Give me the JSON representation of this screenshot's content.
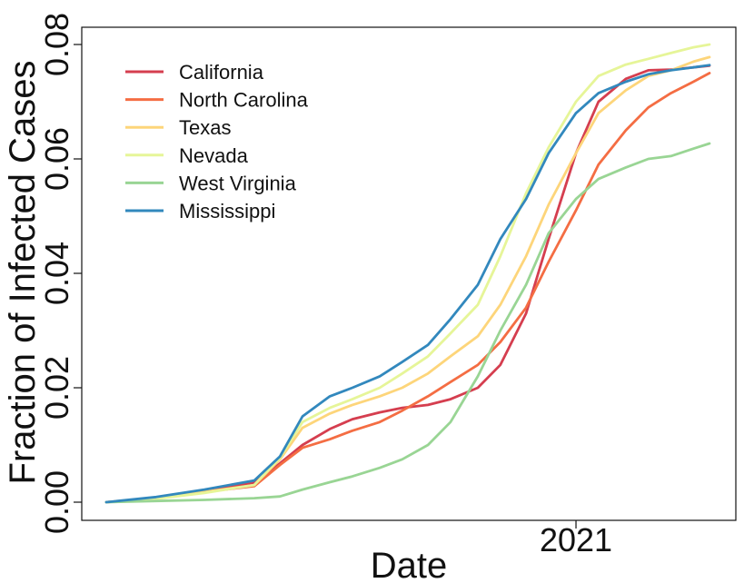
{
  "chart_data": {
    "type": "line",
    "title": "",
    "xlabel": "Date",
    "ylabel": "Fraction of Infected Cases",
    "xlim": [
      "2020-03-01",
      "2021-05-01"
    ],
    "ylim": [
      0,
      0.082
    ],
    "x_ticks": [
      {
        "date": "2021-01-01",
        "label": "2021"
      }
    ],
    "y_ticks": [
      {
        "value": 0.0,
        "label": "0.00"
      },
      {
        "value": 0.02,
        "label": "0.02"
      },
      {
        "value": 0.04,
        "label": "0.04"
      },
      {
        "value": 0.06,
        "label": "0.06"
      },
      {
        "value": 0.08,
        "label": "0.08"
      }
    ],
    "grid": false,
    "legend_position": "top-left",
    "x": [
      "2020-03-15",
      "2020-04-15",
      "2020-05-15",
      "2020-06-15",
      "2020-07-01",
      "2020-07-15",
      "2020-08-01",
      "2020-08-15",
      "2020-09-01",
      "2020-09-15",
      "2020-10-01",
      "2020-10-15",
      "2020-11-01",
      "2020-11-15",
      "2020-12-01",
      "2020-12-15",
      "2021-01-01",
      "2021-01-15",
      "2021-02-01",
      "2021-02-15",
      "2021-03-01",
      "2021-03-15",
      "2021-03-25"
    ],
    "series": [
      {
        "name": "California",
        "color": "#d53e4f",
        "values": [
          0.0,
          0.0007,
          0.002,
          0.0034,
          0.0068,
          0.01,
          0.0128,
          0.0145,
          0.0157,
          0.0165,
          0.017,
          0.018,
          0.02,
          0.024,
          0.033,
          0.046,
          0.061,
          0.07,
          0.074,
          0.0755,
          0.0756,
          0.076,
          0.0763
        ]
      },
      {
        "name": "North Carolina",
        "color": "#f46d43",
        "values": [
          0.0,
          0.0007,
          0.0018,
          0.0028,
          0.0065,
          0.0095,
          0.011,
          0.0125,
          0.014,
          0.016,
          0.0185,
          0.021,
          0.024,
          0.028,
          0.034,
          0.042,
          0.051,
          0.059,
          0.065,
          0.069,
          0.0715,
          0.0735,
          0.075
        ]
      },
      {
        "name": "Texas",
        "color": "#fdd57a",
        "values": [
          0.0,
          0.0007,
          0.0018,
          0.003,
          0.0075,
          0.013,
          0.0155,
          0.017,
          0.0185,
          0.02,
          0.0225,
          0.0255,
          0.029,
          0.0345,
          0.043,
          0.052,
          0.061,
          0.068,
          0.072,
          0.0745,
          0.0755,
          0.077,
          0.0778
        ]
      },
      {
        "name": "Nevada",
        "color": "#e6f598",
        "values": [
          0.0,
          0.0006,
          0.0016,
          0.003,
          0.0078,
          0.014,
          0.0165,
          0.018,
          0.02,
          0.0225,
          0.0255,
          0.0295,
          0.0345,
          0.043,
          0.054,
          0.062,
          0.07,
          0.0745,
          0.0765,
          0.0775,
          0.0785,
          0.0795,
          0.08
        ]
      },
      {
        "name": "West Virginia",
        "color": "#99d594",
        "values": [
          0.0,
          0.0002,
          0.0004,
          0.0007,
          0.001,
          0.0022,
          0.0035,
          0.0045,
          0.006,
          0.0075,
          0.01,
          0.014,
          0.022,
          0.03,
          0.038,
          0.047,
          0.053,
          0.0565,
          0.0585,
          0.06,
          0.0605,
          0.0618,
          0.0627
        ]
      },
      {
        "name": "Mississippi",
        "color": "#3288bd",
        "values": [
          0.0,
          0.0009,
          0.0022,
          0.0038,
          0.008,
          0.015,
          0.0185,
          0.02,
          0.022,
          0.0245,
          0.0275,
          0.032,
          0.038,
          0.046,
          0.053,
          0.061,
          0.068,
          0.0715,
          0.0735,
          0.0748,
          0.0755,
          0.076,
          0.0764
        ]
      }
    ]
  }
}
